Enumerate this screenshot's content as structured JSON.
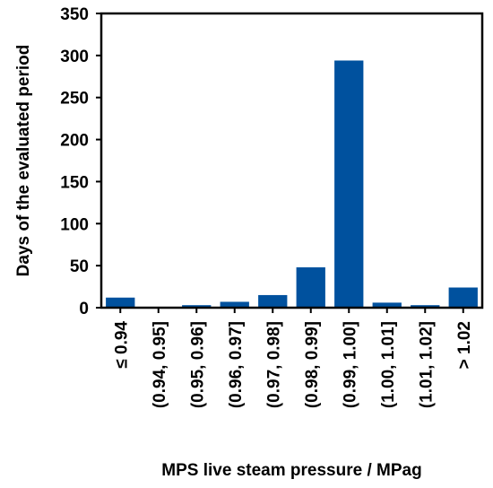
{
  "chart_data": {
    "type": "bar",
    "title": "",
    "xlabel": "MPS live steam pressure / MPag",
    "ylabel": "Days of the evaluated period",
    "categories": [
      "≤ 0.94",
      "(0.94, 0.95]",
      "(0.95, 0.96]",
      "(0.96, 0.97]",
      "(0.97, 0.98]",
      "(0.98, 0.99]",
      "(0.99, 1.00]",
      "(1.00, 1.01]",
      "(1.01, 1.02]",
      "> 1.02"
    ],
    "values": [
      12,
      1,
      3,
      7,
      15,
      48,
      294,
      6,
      3,
      24
    ],
    "ylim": [
      0,
      350
    ],
    "yticks": [
      0,
      50,
      100,
      150,
      200,
      250,
      300,
      350
    ],
    "bar_color": "#00519E",
    "grid": false,
    "legend": "none"
  }
}
